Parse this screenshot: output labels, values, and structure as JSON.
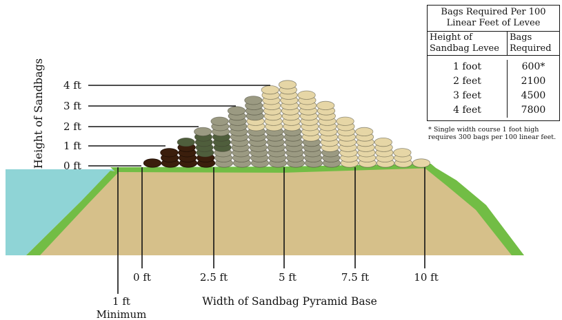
{
  "diagram": {
    "y_axis_label": "Height of Sandbags",
    "height_labels": [
      "0 ft",
      "1 ft",
      "2 ft",
      "3 ft",
      "4 ft"
    ],
    "width_labels": [
      "0 ft",
      "2.5 ft",
      "5 ft",
      "7.5 ft",
      "10 ft"
    ],
    "minimum_label_line1": "1 ft",
    "minimum_label_line2": "Minimum",
    "x_axis_label": "Width of Sandbag Pyramid Base"
  },
  "table": {
    "title_line1": "Bags Required Per 100",
    "title_line2": "Linear Feet of Levee",
    "col1_header_line1": "Height of",
    "col1_header_line2": "Sandbag Levee",
    "col2_header_line1": "Bags",
    "col2_header_line2": "Required",
    "rows": [
      {
        "height": "1 foot",
        "bags": "600*"
      },
      {
        "height": "2 feet",
        "bags": "2100"
      },
      {
        "height": "3 feet",
        "bags": "4500"
      },
      {
        "height": "4 feet",
        "bags": "7800"
      }
    ],
    "note_line1": "* Single width course 1 foot high",
    "note_line2": "requires 300 bags per 100 linear feet."
  },
  "colors": {
    "water": "#8fd4d6",
    "grass": "#72bd45",
    "soil": "#d6c08a",
    "bag_1ft": "#3b1e0c",
    "bag_2ft": "#4f5e3c",
    "bag_3ft": "#9b9a82",
    "bag_4ft": "#e6d6a6"
  }
}
